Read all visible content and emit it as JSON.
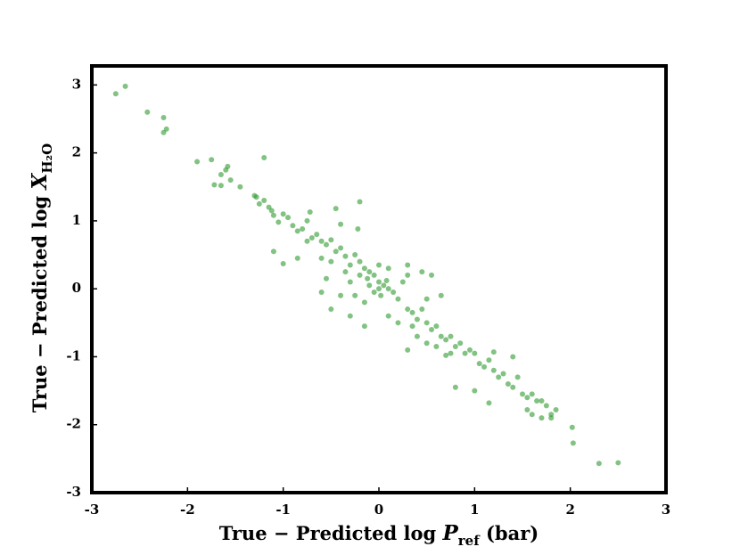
{
  "chart_data": {
    "type": "scatter",
    "xlabel": [
      "True − Predicted log ",
      "P",
      "ref",
      " (bar)"
    ],
    "ylabel": [
      "True − Predicted log ",
      "X",
      "H₂O"
    ],
    "color": "#2e9a2e",
    "xlim": [
      -3,
      3
    ],
    "ylim": [
      -3,
      3.28
    ],
    "xticks": [
      -3,
      -2,
      -1,
      0,
      1,
      2,
      3
    ],
    "yticks": [
      -3,
      -2,
      -1,
      0,
      1,
      2,
      3
    ],
    "x": [
      -2.75,
      -2.65,
      -2.42,
      -2.25,
      -2.25,
      -2.22,
      -1.9,
      -1.75,
      -1.72,
      -1.65,
      -1.6,
      -1.58,
      -1.55,
      -1.65,
      -1.45,
      -1.3,
      -1.28,
      -1.25,
      -1.2,
      -1.15,
      -1.12,
      -1.1,
      -1.05,
      -1.0,
      -0.95,
      -1.2,
      -0.9,
      -0.85,
      -0.8,
      -0.75,
      -0.7,
      -0.65,
      -0.6,
      -0.55,
      -0.5,
      -0.75,
      -0.72,
      -0.45,
      -0.4,
      -0.2,
      -0.22,
      -1.1,
      -1.0,
      -0.85,
      -0.6,
      -0.5,
      -0.45,
      -0.4,
      -0.35,
      -0.3,
      -0.25,
      -0.2,
      -0.15,
      -0.1,
      -0.05,
      0,
      0.05,
      0.1,
      -0.1,
      -0.05,
      0,
      0.02,
      0.08,
      -0.12,
      0.15,
      0.2,
      -0.2,
      -0.3,
      -0.35,
      0.25,
      0.3,
      0.1,
      0.0,
      -0.15,
      -0.25,
      0.3,
      0.35,
      0.4,
      0.45,
      0.5,
      0.55,
      0.6,
      0.65,
      0.7,
      0.75,
      0.8,
      0.85,
      0.9,
      0.95,
      1.0,
      0.75,
      0.6,
      0.5,
      0.4,
      0.35,
      0.2,
      0.1,
      -0.3,
      -0.5,
      -0.4,
      -0.6,
      -0.55,
      0.45,
      0.55,
      0.65,
      0.3,
      0.5,
      -0.15,
      0.3,
      0.7,
      1.05,
      1.1,
      1.15,
      1.2,
      1.25,
      1.3,
      1.35,
      1.4,
      1.45,
      1.5,
      1.55,
      1.6,
      1.65,
      1.7,
      1.55,
      1.75,
      1.8,
      1.85,
      1.8,
      1.15,
      1.0,
      0.8,
      1.4,
      1.2,
      2.02,
      2.03,
      2.3,
      2.5,
      1.7,
      1.6
    ],
    "values": [
      2.87,
      2.98,
      2.6,
      2.52,
      2.3,
      2.35,
      1.87,
      1.9,
      1.53,
      1.68,
      1.75,
      1.8,
      1.6,
      1.52,
      1.5,
      1.37,
      1.35,
      1.25,
      1.3,
      1.2,
      1.15,
      1.08,
      0.98,
      1.1,
      1.05,
      1.93,
      0.93,
      0.85,
      0.88,
      0.7,
      0.75,
      0.8,
      0.7,
      0.65,
      0.72,
      1.0,
      1.13,
      1.18,
      0.95,
      1.28,
      0.88,
      0.55,
      0.37,
      0.45,
      0.45,
      0.4,
      0.55,
      0.6,
      0.48,
      0.35,
      0.5,
      0.4,
      0.3,
      0.25,
      0.2,
      0.1,
      0.05,
      0,
      0.05,
      -0.05,
      0,
      -0.1,
      0.12,
      0.15,
      -0.05,
      -0.15,
      0.2,
      0.1,
      0.25,
      0.1,
      0.2,
      0.3,
      0.35,
      -0.2,
      -0.1,
      -0.3,
      -0.35,
      -0.45,
      -0.3,
      -0.5,
      -0.6,
      -0.55,
      -0.7,
      -0.75,
      -0.7,
      -0.85,
      -0.8,
      -0.95,
      -0.9,
      -0.95,
      -0.95,
      -0.85,
      -0.8,
      -0.7,
      -0.55,
      -0.5,
      -0.4,
      -0.4,
      -0.3,
      -0.1,
      -0.05,
      0.15,
      0.25,
      0.2,
      -0.1,
      0.35,
      -0.15,
      -0.55,
      -0.9,
      -0.98,
      -1.1,
      -1.15,
      -1.05,
      -1.2,
      -1.3,
      -1.25,
      -1.4,
      -1.45,
      -1.3,
      -1.55,
      -1.6,
      -1.55,
      -1.65,
      -1.65,
      -1.78,
      -1.72,
      -1.85,
      -1.78,
      -1.9,
      -1.68,
      -1.5,
      -1.45,
      -1.0,
      -0.93,
      -2.04,
      -2.27,
      -2.57,
      -2.56,
      -1.9,
      -1.85
    ]
  }
}
